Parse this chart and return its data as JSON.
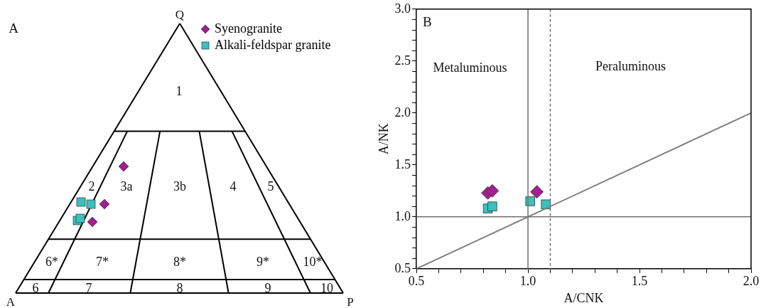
{
  "chart_data": [
    {
      "type": "other",
      "title": "A",
      "annotations": [
        "Q",
        "A",
        "P",
        "1",
        "2",
        "3a",
        "3b",
        "4",
        "5",
        "6*",
        "7*",
        "8*",
        "9*",
        "10*",
        "6",
        "7",
        "8",
        "9",
        "10"
      ],
      "series": [
        {
          "name": "Syenogranite",
          "color": "#a0208f",
          "marker": "diamond"
        },
        {
          "name": "Alkali-feldspar granite",
          "color": "#3cc0bc",
          "marker": "square"
        }
      ],
      "legend": "top right"
    },
    {
      "type": "scatter",
      "title": "B",
      "xlabel": "A/CNK",
      "ylabel": "A/NK",
      "xlim": [
        0.5,
        2.0
      ],
      "xticks": [
        {
          "value": 0.5,
          "label": "0.5"
        },
        {
          "value": 0.6,
          "label": null
        },
        {
          "value": 0.7,
          "label": null
        },
        {
          "value": 0.8,
          "label": null
        },
        {
          "value": 0.9,
          "label": null
        },
        {
          "value": 1.0,
          "label": "1.0"
        },
        {
          "value": 1.1,
          "label": null
        },
        {
          "value": 1.2,
          "label": null
        },
        {
          "value": 1.3,
          "label": null
        },
        {
          "value": 1.4,
          "label": null
        },
        {
          "value": 1.5,
          "label": "1.5"
        },
        {
          "value": 1.6,
          "label": null
        },
        {
          "value": 1.7,
          "label": null
        },
        {
          "value": 1.8,
          "label": null
        },
        {
          "value": 1.9,
          "label": null
        },
        {
          "value": 2.0,
          "label": "2.0"
        }
      ],
      "ylim": [
        0.5,
        3.0
      ],
      "yticks": [
        {
          "value": 0.5,
          "label": "0.5"
        },
        {
          "value": 0.6,
          "label": null
        },
        {
          "value": 0.7,
          "label": null
        },
        {
          "value": 0.8,
          "label": null
        },
        {
          "value": 0.9,
          "label": null
        },
        {
          "value": 1.0,
          "label": "1.0"
        },
        {
          "value": 1.1,
          "label": null
        },
        {
          "value": 1.2,
          "label": null
        },
        {
          "value": 1.3,
          "label": null
        },
        {
          "value": 1.4,
          "label": null
        },
        {
          "value": 1.5,
          "label": "1.5"
        },
        {
          "value": 1.6,
          "label": null
        },
        {
          "value": 1.7,
          "label": null
        },
        {
          "value": 1.8,
          "label": null
        },
        {
          "value": 1.9,
          "label": null
        },
        {
          "value": 2.0,
          "label": "2.0"
        },
        {
          "value": 2.1,
          "label": null
        },
        {
          "value": 2.2,
          "label": null
        },
        {
          "value": 2.3,
          "label": null
        },
        {
          "value": 2.4,
          "label": null
        },
        {
          "value": 2.5,
          "label": "2.5"
        },
        {
          "value": 2.6,
          "label": null
        },
        {
          "value": 2.7,
          "label": null
        },
        {
          "value": 2.8,
          "label": null
        },
        {
          "value": 2.9,
          "label": null
        },
        {
          "value": 3.0,
          "label": "3.0"
        }
      ],
      "series": [
        {
          "type": "line",
          "color": "#808080",
          "x": [
            0.5,
            2.0
          ],
          "values": [
            0.5,
            2.0
          ],
          "marker": "none"
        },
        {
          "type": "scatter",
          "color": "#a0208f",
          "marker": "diamond",
          "x": [
            0.82,
            0.84,
            1.04
          ],
          "values": [
            1.23,
            1.25,
            1.24
          ]
        },
        {
          "type": "scatter",
          "color": "#3cc0bc",
          "marker": "square",
          "x": [
            0.82,
            0.84,
            1.01,
            1.08
          ],
          "values": [
            1.08,
            1.1,
            1.15,
            1.12
          ]
        }
      ],
      "ref_lines": [
        {
          "axis": "x",
          "value": 1.0,
          "color": "#707070",
          "line_style": "solid"
        },
        {
          "axis": "x",
          "value": 1.1,
          "color": "#707070",
          "line_style": "dashed"
        },
        {
          "axis": "y",
          "value": 1.0,
          "color": "#707070",
          "line_style": "solid"
        }
      ],
      "annotations": [
        "Metaluminous",
        "Peraluminous"
      ]
    }
  ]
}
